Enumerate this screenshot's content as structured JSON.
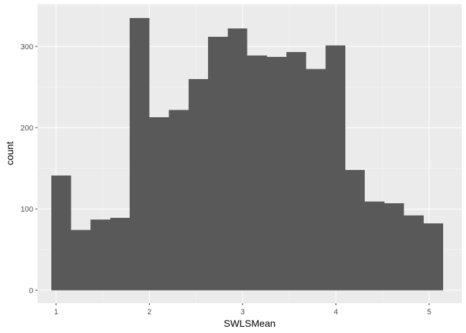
{
  "chart_data": {
    "type": "bar",
    "subtype": "histogram",
    "xlabel": "SWLSMean",
    "ylabel": "count",
    "xlim": [
      0.8,
      5.35
    ],
    "ylim": [
      -16,
      352
    ],
    "x_ticks": [
      1,
      2,
      3,
      4,
      5
    ],
    "y_ticks": [
      0,
      100,
      200,
      300
    ],
    "grid": true,
    "legend": "none",
    "bar_color": "#595959",
    "panel_background": "#ebebeb",
    "gridline_color": "#ffffff",
    "bins": [
      {
        "xmin": 0.95,
        "xmax": 1.16,
        "count": 141
      },
      {
        "xmin": 1.16,
        "xmax": 1.37,
        "count": 74
      },
      {
        "xmin": 1.37,
        "xmax": 1.58,
        "count": 87
      },
      {
        "xmin": 1.58,
        "xmax": 1.79,
        "count": 89
      },
      {
        "xmin": 1.79,
        "xmax": 2.0,
        "count": 335
      },
      {
        "xmin": 2.0,
        "xmax": 2.21,
        "count": 213
      },
      {
        "xmin": 2.21,
        "xmax": 2.42,
        "count": 222
      },
      {
        "xmin": 2.42,
        "xmax": 2.63,
        "count": 260
      },
      {
        "xmin": 2.63,
        "xmax": 2.84,
        "count": 312
      },
      {
        "xmin": 2.84,
        "xmax": 3.05,
        "count": 322
      },
      {
        "xmin": 3.05,
        "xmax": 3.26,
        "count": 289
      },
      {
        "xmin": 3.26,
        "xmax": 3.47,
        "count": 287
      },
      {
        "xmin": 3.47,
        "xmax": 3.68,
        "count": 293
      },
      {
        "xmin": 3.68,
        "xmax": 3.89,
        "count": 272
      },
      {
        "xmin": 3.89,
        "xmax": 4.1,
        "count": 301
      },
      {
        "xmin": 4.1,
        "xmax": 4.31,
        "count": 148
      },
      {
        "xmin": 4.31,
        "xmax": 4.52,
        "count": 109
      },
      {
        "xmin": 4.52,
        "xmax": 4.73,
        "count": 107
      },
      {
        "xmin": 4.73,
        "xmax": 4.94,
        "count": 92
      },
      {
        "xmin": 4.94,
        "xmax": 5.15,
        "count": 82
      }
    ]
  }
}
